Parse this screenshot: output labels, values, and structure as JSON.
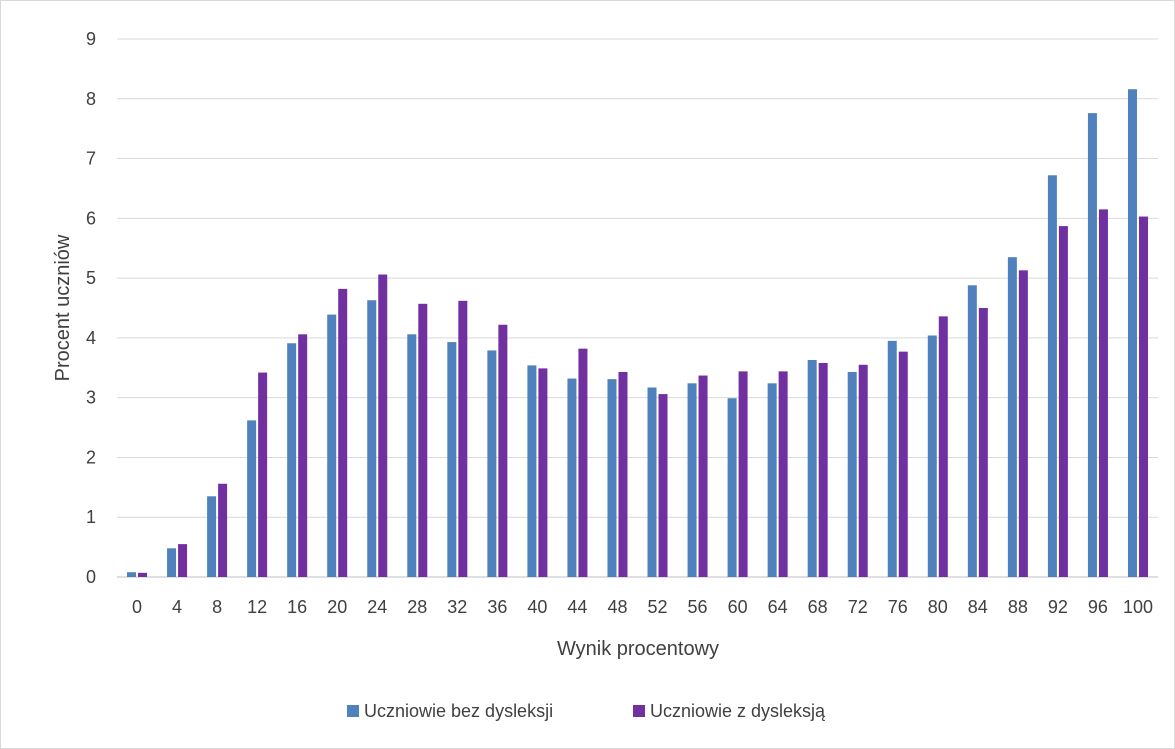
{
  "chart_data": {
    "type": "bar",
    "title": "",
    "xlabel": "Wynik procentowy",
    "ylabel": "Procent uczniów",
    "categories": [
      "0",
      "4",
      "8",
      "12",
      "16",
      "20",
      "24",
      "28",
      "32",
      "36",
      "40",
      "44",
      "48",
      "52",
      "56",
      "60",
      "64",
      "68",
      "72",
      "76",
      "80",
      "84",
      "88",
      "92",
      "96",
      "100"
    ],
    "ylim": [
      0,
      9
    ],
    "yticks": [
      "0",
      "1",
      "2",
      "3",
      "4",
      "5",
      "6",
      "7",
      "8",
      "9"
    ],
    "grid": true,
    "legend_position": "bottom",
    "series": [
      {
        "name": "Uczniowie bez dysleksji",
        "color": "#4f81bd",
        "values": [
          0.08,
          0.48,
          1.35,
          2.62,
          3.91,
          4.39,
          4.63,
          4.06,
          3.93,
          3.79,
          3.54,
          3.32,
          3.31,
          3.17,
          3.24,
          2.99,
          3.24,
          3.63,
          3.43,
          3.95,
          4.04,
          4.88,
          5.35,
          6.72,
          7.76,
          8.16
        ]
      },
      {
        "name": "Uczniowie z dysleksją",
        "color": "#7030a0",
        "values": [
          0.07,
          0.55,
          1.56,
          3.42,
          4.06,
          4.82,
          5.06,
          4.57,
          4.62,
          4.22,
          3.49,
          3.82,
          3.43,
          3.06,
          3.37,
          3.44,
          3.44,
          3.58,
          3.55,
          3.77,
          4.36,
          4.5,
          5.13,
          5.87,
          6.15,
          6.03
        ]
      }
    ]
  }
}
